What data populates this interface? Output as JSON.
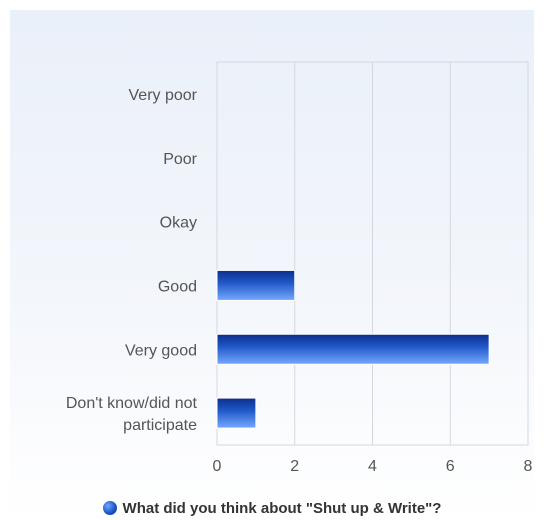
{
  "chart_data": {
    "type": "bar",
    "orientation": "horizontal",
    "title": "",
    "categories": [
      "Very poor",
      "Poor",
      "Okay",
      "Good",
      "Very good",
      "Don't know/did not participate"
    ],
    "category_lines": [
      [
        "Very poor"
      ],
      [
        "Poor"
      ],
      [
        "Okay"
      ],
      [
        "Good"
      ],
      [
        "Very good"
      ],
      [
        "Don't know/did not",
        "participate"
      ]
    ],
    "series": [
      {
        "name": "What did you think about \"Shut up & Write\"?",
        "values": [
          0,
          0,
          0,
          2,
          7,
          1
        ],
        "color": "#1f56c7"
      }
    ],
    "xlim": [
      0,
      8
    ],
    "xticks": [
      "0",
      "2",
      "4",
      "6",
      "8"
    ],
    "grid": true,
    "legend_position": "bottom-center"
  }
}
